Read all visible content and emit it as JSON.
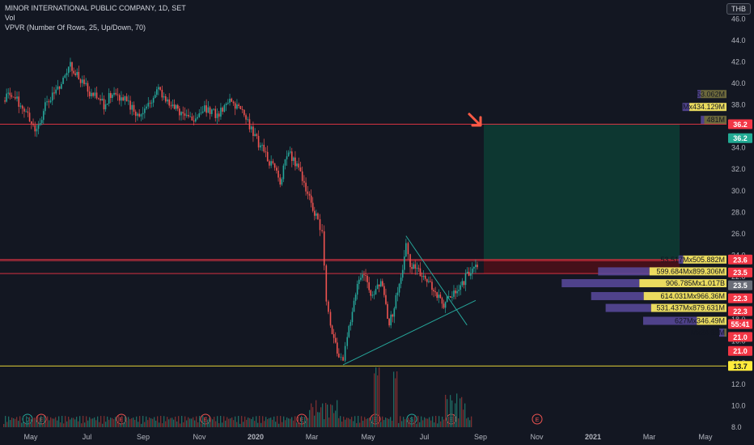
{
  "header": {
    "title": "MINOR INTERNATIONAL PUBLIC COMPANY, 1D, SET",
    "volume_label": "Vol",
    "indicator": "VPVR (Number Of Rows, 25, Up/Down, 70)",
    "currency": "THB"
  },
  "colors": {
    "background": "#131722",
    "up": "#26a69a",
    "down": "#ef5350",
    "level_line": "#f23645",
    "support_line": "#ffeb3b",
    "target_zone": "#0d3b33",
    "stop_zone": "#4a1018",
    "arrow": "#ff5b45"
  },
  "chart_data": {
    "type": "candlestick",
    "price_axis": {
      "min": 8.0,
      "max": 47.0,
      "ticks": [
        8.0,
        10.0,
        12.0,
        14.0,
        16.0,
        18.0,
        20.0,
        22.0,
        24.0,
        26.0,
        28.0,
        30.0,
        32.0,
        34.0,
        36.0,
        38.0,
        40.0,
        42.0,
        44.0,
        46.0
      ]
    },
    "time_axis_labels": [
      "May",
      "Jul",
      "Sep",
      "Nov",
      "2020",
      "Mar",
      "May",
      "Jul",
      "Sep",
      "Nov",
      "2021",
      "Mar",
      "May"
    ],
    "event_markers": [
      "D",
      "E",
      "E",
      "E",
      "E",
      "E",
      "S",
      "E",
      "E"
    ],
    "price_path": [
      [
        0,
        38.4
      ],
      [
        2,
        39.0
      ],
      [
        5,
        37.5
      ],
      [
        8,
        35.5
      ],
      [
        10,
        37.8
      ],
      [
        13,
        39.5
      ],
      [
        16,
        41.8
      ],
      [
        18,
        40.5
      ],
      [
        21,
        39.0
      ],
      [
        24,
        38.0
      ],
      [
        26,
        39.2
      ],
      [
        29,
        38.4
      ],
      [
        32,
        37.0
      ],
      [
        35,
        38.2
      ],
      [
        37,
        39.6
      ],
      [
        40,
        37.8
      ],
      [
        42,
        37.4
      ],
      [
        45,
        36.6
      ],
      [
        48,
        37.8
      ],
      [
        51,
        37.0
      ],
      [
        54,
        38.6
      ],
      [
        57,
        37.2
      ],
      [
        60,
        35.0
      ],
      [
        63,
        33.0
      ],
      [
        66,
        31.0
      ],
      [
        68,
        33.5
      ],
      [
        70,
        32.5
      ],
      [
        73,
        29.5
      ],
      [
        75,
        27.0
      ],
      [
        76,
        25.8
      ],
      [
        77,
        19.5
      ],
      [
        78,
        17.5
      ],
      [
        80,
        14.5
      ],
      [
        81,
        13.8
      ],
      [
        82,
        16.5
      ],
      [
        84,
        20.5
      ],
      [
        86,
        22.5
      ],
      [
        88,
        20.0
      ],
      [
        90,
        21.5
      ],
      [
        92,
        17.5
      ],
      [
        94,
        20.5
      ],
      [
        96,
        24.8
      ],
      [
        97,
        23.0
      ],
      [
        99,
        22.5
      ],
      [
        101,
        21.5
      ],
      [
        103,
        20.5
      ],
      [
        105,
        19.5
      ],
      [
        107,
        20.5
      ],
      [
        109,
        21.0
      ],
      [
        111,
        22.5
      ],
      [
        113,
        23.2
      ]
    ],
    "lines": [
      {
        "label": "36.2",
        "price": 36.2
      },
      {
        "label": "23.6",
        "price": 23.6
      },
      {
        "label": "23.5",
        "price": 23.5
      },
      {
        "label": "22.3",
        "price": 22.3
      },
      {
        "label": "13.7",
        "price": 13.7
      }
    ],
    "price_labels": [
      {
        "text": "36.2",
        "price": 36.2,
        "color": "#f23645"
      },
      {
        "text": "36.2",
        "price": 34.9,
        "color": "#22ab94"
      },
      {
        "text": "23.6",
        "price": 23.6,
        "color": "#f23645"
      },
      {
        "text": "23.5",
        "price": 22.4,
        "color": "#f23645"
      },
      {
        "text": "23.5",
        "price": 21.2,
        "color": "#6a6d78"
      },
      {
        "text": "22.3",
        "price": 20.0,
        "color": "#f23645"
      },
      {
        "text": "22.3",
        "price": 18.8,
        "color": "#f23645"
      },
      {
        "text": "55:41",
        "price": 17.6,
        "color": "#f23645"
      },
      {
        "text": "21.0",
        "price": 16.4,
        "color": "#f23645"
      },
      {
        "text": "21.0",
        "price": 15.1,
        "color": "#f23645"
      },
      {
        "text": "13.7",
        "price": 13.7,
        "color": "#ffeb3b"
      }
    ],
    "volume_profile": [
      {
        "price": 23.6,
        "label": "53.517Mx505.882M",
        "up": 506,
        "down": 54
      },
      {
        "price": 22.5,
        "label": "599.684Mx899.306M",
        "up": 899,
        "down": 600
      },
      {
        "price": 21.4,
        "label": "906.785Mx1.017B",
        "up": 1017,
        "down": 907
      },
      {
        "price": 20.2,
        "label": "614.031Mx966.36M",
        "up": 966,
        "down": 614
      },
      {
        "price": 19.1,
        "label": "531.437Mx879.631M",
        "up": 880,
        "down": 531
      },
      {
        "price": 17.9,
        "label": "627Mx346.49M",
        "up": 346,
        "down": 627
      },
      {
        "price": 16.8,
        "label": "Mx24.92M",
        "up": 25,
        "down": 60
      },
      {
        "price": 37.8,
        "label": "Mx434.129M",
        "up": 434,
        "down": 80
      },
      {
        "price": 39.0,
        "label": "53.062M",
        "up": 300,
        "down": 40
      },
      {
        "price": 36.6,
        "label": "481M",
        "up": 260,
        "down": 40
      }
    ],
    "position": {
      "entry": 23.6,
      "target": 36.2,
      "stop": 22.3
    },
    "triangle": {
      "upper": [
        [
          96,
          25.8
        ],
        [
          109,
          17.5
        ]
      ],
      "lower": [
        [
          81,
          13.8
        ],
        [
          113,
          19.8
        ]
      ]
    }
  }
}
